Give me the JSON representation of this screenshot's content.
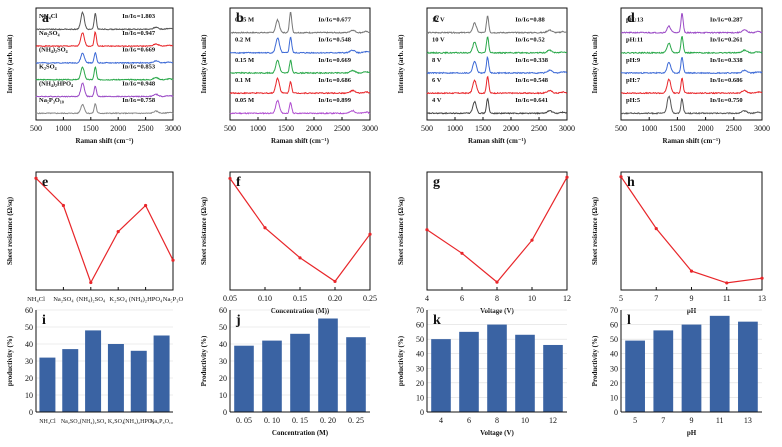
{
  "figure": {
    "colors": {
      "red": "#e8262a",
      "bar": "#3a63a3",
      "black": "#111111"
    }
  },
  "chart_data": [
    {
      "id": "a",
      "letter": "a",
      "type": "line",
      "subtype": "raman-stacked",
      "title": "",
      "xlabel": "Raman shift (cm⁻¹)",
      "ylabel": "Intensity (arb. unit)",
      "xlim": [
        500,
        3000
      ],
      "xticks": [
        "500",
        "1000",
        "1500",
        "2000",
        "2500",
        "3000"
      ],
      "curve_colors": [
        "#555555",
        "#e8262a",
        "#3d6ad6",
        "#2aa84a",
        "#9b4bc6",
        "#888888"
      ],
      "peak_heights": [
        [
          0.95,
          0.9
        ],
        [
          0.75,
          0.8
        ],
        [
          0.55,
          0.6
        ],
        [
          0.7,
          0.72
        ],
        [
          0.75,
          0.6
        ],
        [
          0.5,
          0.55
        ]
      ],
      "series": [
        {
          "name": "NH₄Cl",
          "ratio": "Iᴅ/Iɢ=1.803"
        },
        {
          "name": "Na₂SO₄",
          "ratio": "Iᴅ/Iɢ=0.947"
        },
        {
          "name": "(NH₄)₂SO₄",
          "ratio": "Iᴅ/Iɢ=0.669"
        },
        {
          "name": "K₂SO₄",
          "ratio": "Iᴅ/Iɢ=0.853"
        },
        {
          "name": "(NH₄)₂HPO₄",
          "ratio": "Iᴅ/Iɢ=0.948"
        },
        {
          "name": "Na₅P₃O₁₀",
          "ratio": "Iᴅ/Iɢ=0.758"
        }
      ]
    },
    {
      "id": "b",
      "letter": "b",
      "type": "line",
      "subtype": "raman-stacked",
      "title": "",
      "xlabel": "Raman shift (cm⁻¹)",
      "ylabel": "Intensity (arb. unit)",
      "xlim": [
        500,
        3000
      ],
      "xticks": [
        "500",
        "1000",
        "1500",
        "2000",
        "2500",
        "3000"
      ],
      "curve_colors": [
        "#777777",
        "#3d6ad6",
        "#2aa84a",
        "#e8262a",
        "#b04fd0"
      ],
      "peak_heights": [
        [
          0.6,
          1.0
        ],
        [
          0.7,
          0.75
        ],
        [
          0.6,
          0.6
        ],
        [
          0.7,
          0.55
        ],
        [
          0.6,
          0.5
        ]
      ],
      "series": [
        {
          "name": "0.25 M",
          "ratio": "Iᴅ/Iɢ=0.677"
        },
        {
          "name": "0.2 M",
          "ratio": "Iᴅ/Iɢ=0.548"
        },
        {
          "name": "0.15 M",
          "ratio": "Iᴅ/Iɢ=0.669"
        },
        {
          "name": "0.1 M",
          "ratio": "Iᴅ/Iɢ=0.686"
        },
        {
          "name": "0.05 M",
          "ratio": "Iᴅ/Iɢ=0.899"
        }
      ]
    },
    {
      "id": "c",
      "letter": "c",
      "type": "line",
      "subtype": "raman-stacked",
      "title": "",
      "xlabel": "Raman shift (cm⁻¹)",
      "ylabel": "Intensity (arb. unit)",
      "xlim": [
        500,
        3000
      ],
      "xticks": [
        "500",
        "1000",
        "1500",
        "2000",
        "2500",
        "3000"
      ],
      "curve_colors": [
        "#777777",
        "#2aa84a",
        "#3d6ad6",
        "#e8262a",
        "#444444"
      ],
      "peak_heights": [
        [
          0.45,
          0.8
        ],
        [
          0.5,
          0.75
        ],
        [
          0.55,
          0.75
        ],
        [
          0.6,
          0.8
        ],
        [
          0.55,
          0.7
        ]
      ],
      "series": [
        {
          "name": "12 V",
          "ratio": "Iᴅ/Iɢ=0.88"
        },
        {
          "name": "10 V",
          "ratio": "Iᴅ/Iɢ=0.52"
        },
        {
          "name": "8 V",
          "ratio": "Iᴅ/Iɢ=0.338"
        },
        {
          "name": "6 V",
          "ratio": "Iᴅ/Iɢ=0.548"
        },
        {
          "name": "4 V",
          "ratio": "Iᴅ/Iɢ=0.641"
        }
      ]
    },
    {
      "id": "d",
      "letter": "d",
      "type": "line",
      "subtype": "raman-stacked",
      "title": "",
      "xlabel": "Raman shift (cm⁻¹)",
      "ylabel": "Intensity (arb. unit)",
      "xlim": [
        500,
        3000
      ],
      "xticks": [
        "500",
        "1000",
        "1500",
        "2000",
        "2500",
        "3000"
      ],
      "curve_colors": [
        "#9b4bc6",
        "#2aa84a",
        "#3d6ad6",
        "#e8262a",
        "#555555"
      ],
      "peak_heights": [
        [
          0.3,
          0.9
        ],
        [
          0.45,
          0.8
        ],
        [
          0.5,
          0.75
        ],
        [
          0.65,
          0.7
        ],
        [
          0.8,
          0.7
        ]
      ],
      "series": [
        {
          "name": "pH:13",
          "ratio": "Iᴅ/Iɢ=0.287"
        },
        {
          "name": "pH:11",
          "ratio": "Iᴅ/Iɢ=0.261"
        },
        {
          "name": "pH:9",
          "ratio": "Iᴅ/Iɢ=0.338"
        },
        {
          "name": "pH:7",
          "ratio": "Iᴅ/Iɢ=0.686"
        },
        {
          "name": "pH:5",
          "ratio": "Iᴅ/Iɢ=0.750"
        }
      ]
    },
    {
      "id": "e",
      "letter": "e",
      "type": "line",
      "categorical": true,
      "title": "",
      "xlabel": "",
      "ylabel": "Sheet resistance (Ω/sq)",
      "categories": [
        "NH₄Cl",
        "Na₂SO₄",
        "(NH₄)₂SO₄",
        "K₂SO₄",
        "(NH₄)₂HPO₄",
        "Na₅P₃O"
      ],
      "x": [
        0,
        1,
        2,
        3,
        4,
        5
      ],
      "values": [
        12.0,
        9.8,
        3.6,
        7.7,
        9.8,
        5.4
      ],
      "ylim": [
        3,
        12.5
      ],
      "yticks": []
    },
    {
      "id": "f",
      "letter": "f",
      "type": "line",
      "title": "",
      "xlabel": "Concentration (M))",
      "ylabel": "Sheet resistance (Ω/sq)",
      "x": [
        0.05,
        0.1,
        0.15,
        0.2,
        0.25
      ],
      "values": [
        7.2,
        4.9,
        3.5,
        2.4,
        4.6
      ],
      "xlim": [
        0.05,
        0.25
      ],
      "xticks": [
        "0.05",
        "0.10",
        "0.15",
        "0.20",
        "0.25"
      ],
      "ylim": [
        2,
        7.5
      ],
      "yticks": []
    },
    {
      "id": "g",
      "letter": "g",
      "type": "line",
      "title": "",
      "xlabel": "Voltage (V)",
      "ylabel": "Sheet resistance (Ω/sq)",
      "x": [
        4,
        6,
        8,
        10,
        12
      ],
      "values": [
        3.3,
        2.4,
        1.3,
        2.9,
        5.3
      ],
      "xlim": [
        4,
        12
      ],
      "xticks": [
        "4",
        "6",
        "8",
        "10",
        "12"
      ],
      "ylim": [
        1,
        5.5
      ],
      "yticks": []
    },
    {
      "id": "h",
      "letter": "h",
      "type": "line",
      "title": "",
      "xlabel": "pH",
      "ylabel": "Sheet resistance (Ω/sq)",
      "x": [
        5,
        7,
        9,
        11,
        13
      ],
      "values": [
        5.3,
        3.1,
        1.3,
        0.8,
        1.0
      ],
      "xlim": [
        5,
        13
      ],
      "xticks": [
        "5",
        "7",
        "9",
        "11",
        "13"
      ],
      "ylim": [
        0.5,
        5.5
      ],
      "yticks": []
    },
    {
      "id": "i",
      "letter": "i",
      "type": "bar",
      "title": "",
      "xlabel": "",
      "ylabel": "productivity (%)",
      "categories": [
        "NH₄Cl",
        "Na₂SO₄",
        "(NH₄)₂SO₄",
        "K₂SO₄",
        "(NH₄)₂HPO₄",
        "Na₅P₃O₁₀"
      ],
      "values": [
        32,
        37,
        48,
        40,
        36,
        45
      ],
      "ylim": [
        0,
        60
      ],
      "yticks": [
        "0",
        "10",
        "20",
        "30",
        "40",
        "50",
        "60"
      ]
    },
    {
      "id": "j",
      "letter": "j",
      "type": "bar",
      "title": "",
      "xlabel": "Concentration (M)",
      "ylabel": "Productivity (%)",
      "categories": [
        "0. 05",
        "0. 10",
        "0. 15",
        "0. 20",
        "0. 25"
      ],
      "values": [
        39,
        42,
        46,
        55,
        44
      ],
      "ylim": [
        0,
        60
      ],
      "yticks": [
        "0",
        "10",
        "20",
        "30",
        "40",
        "50",
        "60"
      ]
    },
    {
      "id": "k",
      "letter": "k",
      "type": "bar",
      "title": "",
      "xlabel": "Voltage (V)",
      "ylabel": "productivity (%)",
      "categories": [
        "4",
        "6",
        "8",
        "10",
        "12"
      ],
      "values": [
        50,
        55,
        60,
        53,
        46
      ],
      "ylim": [
        0,
        70
      ],
      "yticks": [
        "0",
        "10",
        "20",
        "30",
        "40",
        "50",
        "60",
        "70"
      ]
    },
    {
      "id": "l",
      "letter": "l",
      "type": "bar",
      "title": "",
      "xlabel": "pH",
      "ylabel": "Productivity (%)",
      "categories": [
        "5",
        "7",
        "9",
        "11",
        "13"
      ],
      "values": [
        49,
        56,
        60,
        66,
        62
      ],
      "ylim": [
        0,
        70
      ],
      "yticks": [
        "0",
        "10",
        "20",
        "30",
        "40",
        "50",
        "60",
        "70"
      ]
    }
  ]
}
